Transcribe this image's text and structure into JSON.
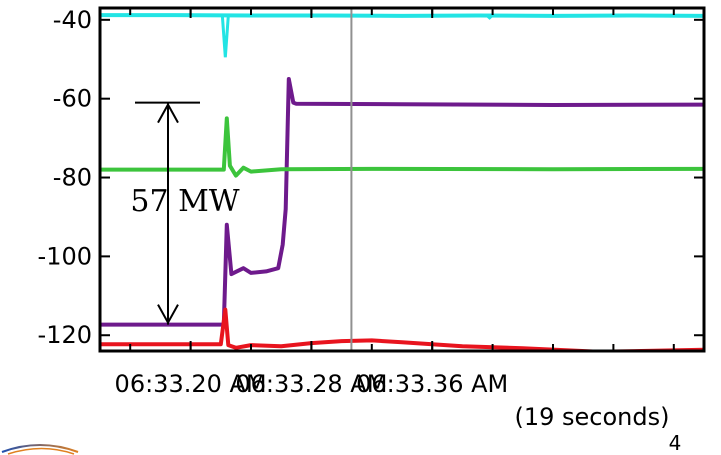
{
  "chart_data": {
    "type": "line",
    "title": "",
    "xlabel": "",
    "ylabel": "",
    "xlim": [
      0,
      0.4
    ],
    "ylim": [
      -124,
      -37
    ],
    "y_ticks": [
      -40,
      -60,
      -80,
      -100,
      -120
    ],
    "y_tick_labels": [
      "-40",
      "-60",
      "-80",
      "-100",
      "-120"
    ],
    "x_ticks": [
      0.06,
      0.14,
      0.22
    ],
    "x_tick_labels": [
      "06:33.20 AM",
      "06:33.28 AM",
      "06:33.36 AM"
    ],
    "x_note": "(19 seconds)",
    "grid": false,
    "vertical_marker_x": 0.1665,
    "series": [
      {
        "color": "#22e4e4",
        "points": [
          [
            0,
            -38.8
          ],
          [
            0.05,
            -38.8
          ],
          [
            0.1,
            -38.9
          ],
          [
            0.15,
            -38.9
          ],
          [
            0.2,
            -39
          ],
          [
            0.25,
            -38.9
          ],
          [
            0.3,
            -39
          ],
          [
            0.35,
            -38.9
          ],
          [
            0.4,
            -39
          ]
        ],
        "spikes": [
          [
            0.083,
            -49.5
          ],
          [
            0.085,
            -38.5
          ],
          [
            0.258,
            -39.5
          ],
          [
            0.26,
            -38.8
          ]
        ]
      },
      {
        "color": "#6e1a8c",
        "points": [
          [
            0,
            -117.3
          ],
          [
            0.08,
            -117.3
          ],
          [
            0.082,
            -117.3
          ],
          [
            0.084,
            -92
          ],
          [
            0.087,
            -104.5
          ],
          [
            0.095,
            -103
          ],
          [
            0.1,
            -104.2
          ],
          [
            0.11,
            -103.8
          ],
          [
            0.118,
            -103
          ],
          [
            0.121,
            -97
          ],
          [
            0.123,
            -88
          ],
          [
            0.125,
            -55
          ],
          [
            0.128,
            -61
          ],
          [
            0.13,
            -61.3
          ],
          [
            0.2,
            -61.4
          ],
          [
            0.3,
            -61.6
          ],
          [
            0.4,
            -61.5
          ]
        ]
      },
      {
        "color": "#3cc43c",
        "points": [
          [
            0,
            -78
          ],
          [
            0.08,
            -78
          ],
          [
            0.082,
            -78
          ],
          [
            0.084,
            -65
          ],
          [
            0.086,
            -77
          ],
          [
            0.09,
            -79.5
          ],
          [
            0.095,
            -77.5
          ],
          [
            0.1,
            -78.5
          ],
          [
            0.12,
            -77.9
          ],
          [
            0.18,
            -77.8
          ],
          [
            0.3,
            -77.9
          ],
          [
            0.4,
            -77.8
          ]
        ]
      },
      {
        "color": "#e8141e",
        "points": [
          [
            0,
            -122.3
          ],
          [
            0.08,
            -122.3
          ],
          [
            0.083,
            -113.5
          ],
          [
            0.085,
            -122.5
          ],
          [
            0.09,
            -123.2
          ],
          [
            0.1,
            -122.5
          ],
          [
            0.12,
            -122.8
          ],
          [
            0.14,
            -122
          ],
          [
            0.16,
            -121.5
          ],
          [
            0.18,
            -121.3
          ],
          [
            0.2,
            -121.8
          ],
          [
            0.24,
            -122.8
          ],
          [
            0.28,
            -123.3
          ],
          [
            0.33,
            -124.2
          ],
          [
            0.4,
            -123.7
          ]
        ]
      }
    ],
    "annotations": [
      {
        "text": "57 MW",
        "y_top": -61,
        "y_bottom": -117.3
      }
    ]
  },
  "footer": {
    "slide_number": "4"
  }
}
